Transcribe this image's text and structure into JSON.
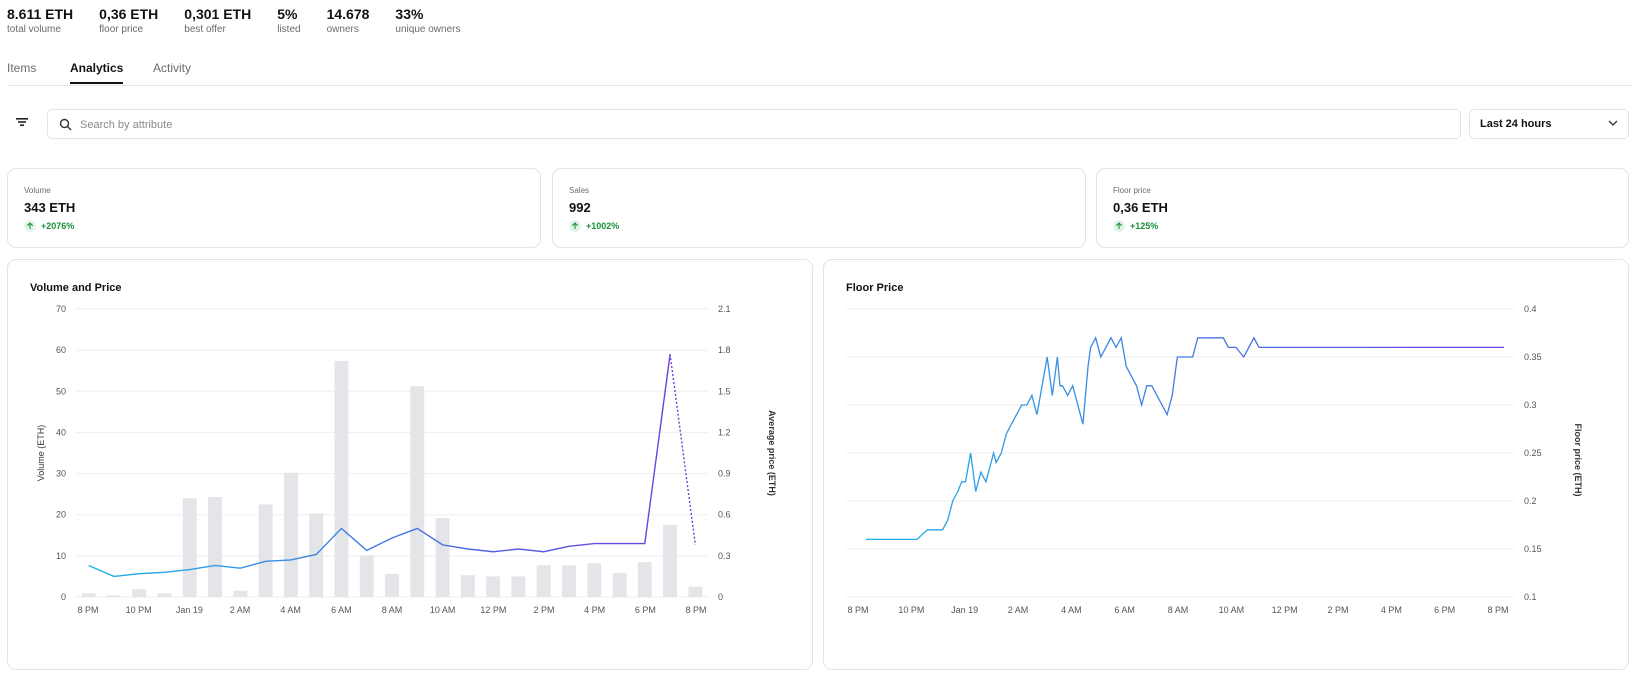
{
  "stats": [
    {
      "value": "8.611 ETH",
      "label": "total volume"
    },
    {
      "value": "0,36 ETH",
      "label": "floor price"
    },
    {
      "value": "0,301 ETH",
      "label": "best offer"
    },
    {
      "value": "5%",
      "label": "listed"
    },
    {
      "value": "14.678",
      "label": "owners"
    },
    {
      "value": "33%",
      "label": "unique owners"
    }
  ],
  "tabs": [
    {
      "label": "Items",
      "active": false
    },
    {
      "label": "Analytics",
      "active": true
    },
    {
      "label": "Activity",
      "active": false
    }
  ],
  "toolbar": {
    "filter_icon": "filter-icon",
    "search_placeholder": "Search by attribute",
    "search_value": "",
    "range_label": "Last 24 hours"
  },
  "cards": [
    {
      "label": "Volume",
      "value": "343 ETH",
      "change": "+2076%"
    },
    {
      "label": "Sales",
      "value": "992",
      "change": "+1002%"
    },
    {
      "label": "Floor price",
      "value": "0,36 ETH",
      "change": "+125%"
    }
  ],
  "colors": {
    "bar": "#e3e5e8",
    "line_start": "#1fb3e6",
    "line_end": "#6b3fe0",
    "positive": "#1a8f3a"
  },
  "chart_data": [
    {
      "type": "bar",
      "title": "Volume and Price",
      "ylabel": "Volume (ETH)",
      "y2label": "Average price (ETH)",
      "ylim": [
        0,
        70
      ],
      "y2lim": [
        0,
        2.1
      ],
      "yticks": [
        "0",
        "10",
        "20",
        "30",
        "40",
        "50",
        "60",
        "70"
      ],
      "y2ticks": [
        "0",
        "0.3",
        "0.6",
        "0.9",
        "1.2",
        "1.5",
        "1.8",
        "2.1"
      ],
      "x_tick_labels": [
        "8 PM",
        "10 PM",
        "Jan 19",
        "2 AM",
        "4 AM",
        "6 AM",
        "8 AM",
        "10 AM",
        "12 PM",
        "2 PM",
        "4 PM",
        "6 PM",
        "8 PM"
      ],
      "grid": true,
      "series": [
        {
          "name": "Volume",
          "kind": "bar",
          "values": [
            0.9,
            0.4,
            1.9,
            0.9,
            24,
            24.3,
            1.5,
            22.5,
            30.2,
            20.3,
            57.4,
            10.1,
            5.6,
            51.2,
            19.2,
            5.3,
            5,
            5,
            7.7,
            7.7,
            8.2,
            5.8,
            8.5,
            17.5,
            2.5
          ]
        },
        {
          "name": "Average price",
          "kind": "line",
          "values": [
            0.23,
            0.15,
            0.17,
            0.18,
            0.2,
            0.23,
            0.21,
            0.26,
            0.27,
            0.31,
            0.5,
            0.34,
            0.43,
            0.5,
            0.38,
            0.35,
            0.33,
            0.35,
            0.33,
            0.37,
            0.39,
            0.39,
            0.39,
            1.77,
            0.38
          ]
        }
      ]
    },
    {
      "type": "line",
      "title": "Floor Price",
      "ylabel": "Floor price (ETH)",
      "ylim": [
        0.1,
        0.4
      ],
      "yticks": [
        "0.1",
        "0.15",
        "0.2",
        "0.25",
        "0.3",
        "0.35",
        "0.4"
      ],
      "x_tick_labels": [
        "8 PM",
        "10 PM",
        "Jan 19",
        "2 AM",
        "4 AM",
        "6 AM",
        "8 AM",
        "10 AM",
        "12 PM",
        "2 PM",
        "4 PM",
        "6 PM",
        "8 PM"
      ],
      "grid": true,
      "series": [
        {
          "name": "Floor price",
          "kind": "line",
          "x": [
            0,
            0.8,
            1.2,
            1.6,
            2.0,
            2.4,
            2.7,
            3.0,
            3.2,
            3.4,
            3.6,
            3.75,
            3.9,
            4.1,
            4.3,
            4.5,
            4.7,
            5.0,
            5.1,
            5.3,
            5.5,
            5.7,
            5.9,
            6.1,
            6.3,
            6.5,
            6.7,
            6.9,
            7.1,
            7.3,
            7.5,
            7.6,
            7.7,
            7.9,
            8.1,
            8.3,
            8.5,
            8.7,
            8.8,
            9.0,
            9.2,
            9.4,
            9.6,
            9.8,
            10.0,
            10.2,
            10.4,
            10.6,
            10.8,
            11.0,
            11.2,
            11.4,
            11.6,
            11.8,
            12.0,
            12.2,
            12.5,
            12.8,
            13.0,
            13.2,
            13.5,
            13.8,
            14.0,
            14.2,
            14.5,
            14.8,
            15.0,
            15.2,
            15.4,
            15.6,
            15.8,
            16.0,
            16.2,
            16.4,
            16.6,
            16.8,
            17.0,
            17.2,
            17.4,
            17.6,
            17.8,
            18.0,
            18.2,
            18.5,
            19.0,
            19.5,
            20.0,
            20.5,
            21.0,
            21.5,
            22.0,
            22.5,
            23.0,
            23.5,
            24.0,
            24.5,
            25.0
          ],
          "y": [
            0.16,
            0.16,
            0.16,
            0.16,
            0.16,
            0.17,
            0.17,
            0.17,
            0.18,
            0.2,
            0.21,
            0.22,
            0.22,
            0.25,
            0.21,
            0.23,
            0.22,
            0.25,
            0.24,
            0.25,
            0.27,
            0.28,
            0.29,
            0.3,
            0.3,
            0.31,
            0.29,
            0.32,
            0.35,
            0.31,
            0.35,
            0.32,
            0.32,
            0.31,
            0.32,
            0.3,
            0.28,
            0.34,
            0.36,
            0.37,
            0.35,
            0.36,
            0.37,
            0.36,
            0.37,
            0.34,
            0.33,
            0.32,
            0.3,
            0.32,
            0.32,
            0.31,
            0.3,
            0.29,
            0.31,
            0.35,
            0.35,
            0.35,
            0.37,
            0.37,
            0.37,
            0.37,
            0.37,
            0.36,
            0.36,
            0.35,
            0.36,
            0.37,
            0.36,
            0.36,
            0.36,
            0.36,
            0.36,
            0.36,
            0.36,
            0.36,
            0.36,
            0.36,
            0.36,
            0.36,
            0.36,
            0.36,
            0.36,
            0.36,
            0.36,
            0.36,
            0.36,
            0.36,
            0.36,
            0.36,
            0.36,
            0.36,
            0.36,
            0.36,
            0.36,
            0.36,
            0.36
          ]
        }
      ]
    }
  ]
}
